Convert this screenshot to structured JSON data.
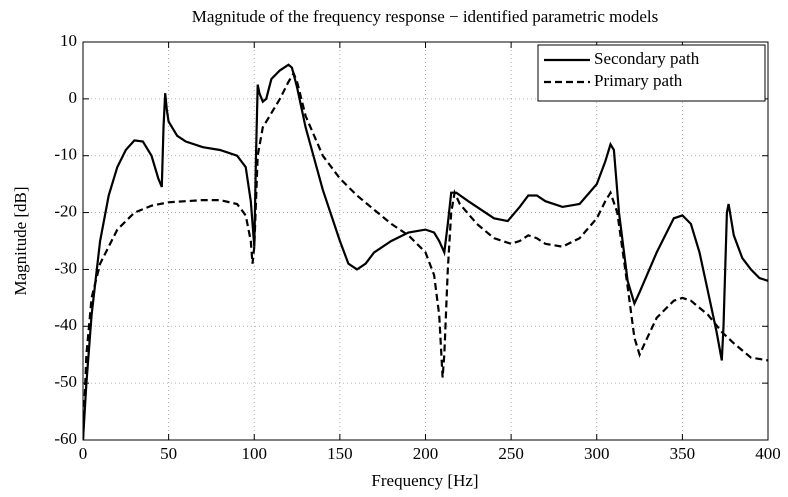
{
  "chart_data": {
    "type": "line",
    "title": "Magnitude of the frequency response − identified parametric models",
    "xlabel": "Frequency [Hz]",
    "ylabel": "Magnitude [dB]",
    "xlim": [
      0,
      400
    ],
    "ylim": [
      -60,
      10
    ],
    "xticks": [
      0,
      50,
      100,
      150,
      200,
      250,
      300,
      350,
      400
    ],
    "yticks": [
      -60,
      -50,
      -40,
      -30,
      -20,
      -10,
      0,
      10
    ],
    "grid": true,
    "legend": "upper right",
    "series": [
      {
        "name": "Secondary path",
        "color": "#000000",
        "linestyle": "solid",
        "x": [
          0,
          2,
          5,
          10,
          15,
          20,
          25,
          30,
          35,
          40,
          44,
          46,
          47,
          48,
          49,
          50,
          55,
          60,
          70,
          80,
          90,
          95,
          98,
          100,
          101,
          102,
          103,
          105,
          107,
          110,
          115,
          120,
          122,
          125,
          130,
          140,
          150,
          155,
          160,
          165,
          170,
          180,
          190,
          200,
          205,
          208,
          211,
          213,
          215,
          218,
          225,
          240,
          248,
          255,
          260,
          265,
          270,
          280,
          290,
          300,
          305,
          308,
          310,
          313,
          318,
          322,
          325,
          335,
          345,
          350,
          355,
          360,
          365,
          370,
          373,
          374,
          376,
          377,
          380,
          385,
          390,
          395,
          400
        ],
        "values": [
          -60,
          -50,
          -38,
          -25,
          -17,
          -12,
          -9,
          -7.3,
          -7.5,
          -10,
          -14,
          -15.5,
          -5,
          1,
          -2,
          -4,
          -6.5,
          -7.5,
          -8.5,
          -9,
          -10,
          -12,
          -18,
          -26,
          -10,
          2.5,
          1,
          -0.5,
          0,
          3.5,
          5,
          6,
          5.5,
          2,
          -5,
          -16,
          -25,
          -29,
          -30,
          -29,
          -27,
          -25,
          -23.5,
          -23,
          -23.5,
          -25,
          -27,
          -22,
          -16.5,
          -16.5,
          -18,
          -21,
          -21.5,
          -19,
          -17,
          -17,
          -18,
          -19,
          -18.5,
          -15,
          -11,
          -8,
          -9,
          -20,
          -32,
          -36,
          -34,
          -27,
          -21,
          -20.5,
          -22,
          -27,
          -34,
          -41,
          -46,
          -40,
          -20,
          -18.5,
          -24,
          -28,
          -30,
          -31.5,
          -32
        ]
      },
      {
        "name": "Primary path",
        "color": "#000000",
        "linestyle": "dashed",
        "x": [
          0,
          2,
          5,
          10,
          20,
          30,
          40,
          50,
          60,
          70,
          80,
          90,
          95,
          98,
          99,
          100,
          102,
          105,
          110,
          115,
          120,
          123,
          125,
          130,
          140,
          150,
          160,
          170,
          180,
          190,
          200,
          205,
          208,
          210,
          211,
          213,
          215,
          217,
          220,
          230,
          240,
          250,
          255,
          260,
          265,
          270,
          280,
          290,
          300,
          305,
          308,
          312,
          318,
          322,
          325,
          328,
          335,
          345,
          350,
          355,
          365,
          373,
          380,
          390,
          400
        ],
        "values": [
          -60,
          -45,
          -35,
          -29,
          -23,
          -20,
          -18.8,
          -18.2,
          -18,
          -17.8,
          -17.8,
          -18.5,
          -20.5,
          -25,
          -29,
          -26,
          -10,
          -5,
          -2.5,
          0,
          3,
          4.5,
          3,
          -3,
          -10,
          -14,
          -17,
          -19.5,
          -22,
          -24,
          -27,
          -31,
          -38,
          -49,
          -45,
          -30,
          -20,
          -16.5,
          -18.5,
          -22,
          -24.5,
          -25.5,
          -25,
          -24,
          -24.5,
          -25.5,
          -26,
          -24.5,
          -21,
          -18,
          -16.5,
          -20,
          -33,
          -42,
          -45,
          -43,
          -38.5,
          -35.5,
          -35,
          -35.5,
          -38,
          -41,
          -43,
          -45.5,
          -46
        ]
      }
    ]
  }
}
